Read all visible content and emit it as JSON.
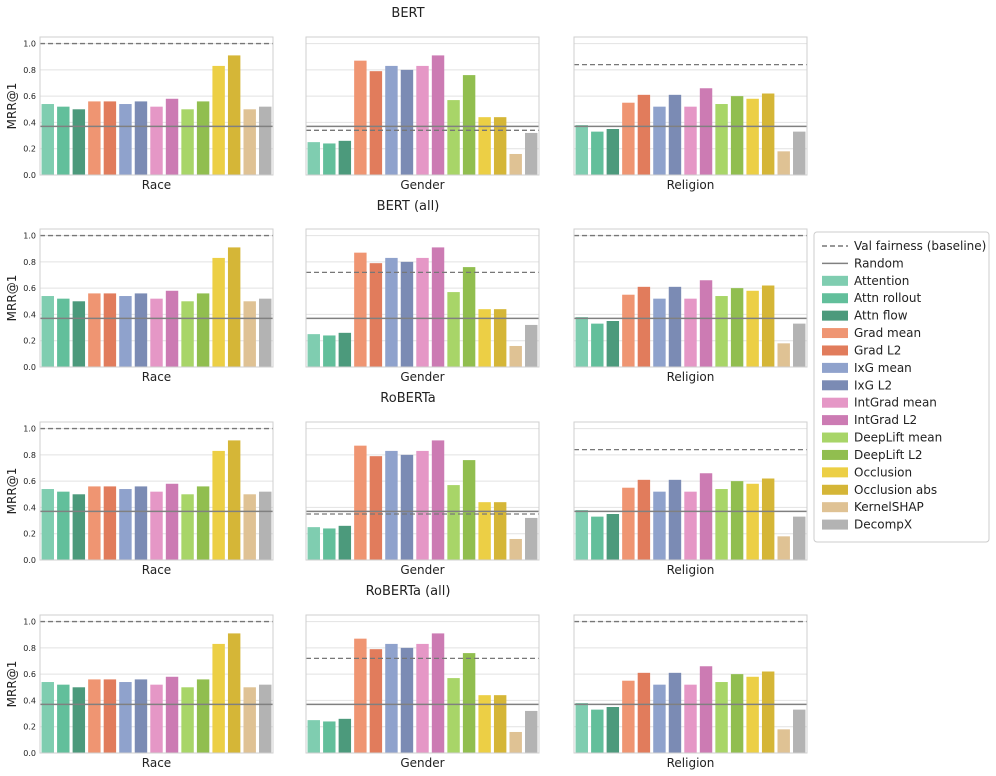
{
  "chart_data": {
    "type": "bar",
    "ylabel": "MRR@1",
    "ylim": [
      0,
      1.05
    ],
    "yticks": [
      0.0,
      0.2,
      0.4,
      0.6,
      0.8,
      1.0
    ],
    "ytick_labels": [
      "0.0",
      "0.2",
      "0.4",
      "0.6",
      "0.8",
      "1.0"
    ],
    "grid": true,
    "legend_position": "right",
    "methods": [
      "Attention",
      "Attn rollout",
      "Attn flow",
      "Grad mean",
      "Grad L2",
      "IxG mean",
      "IxG L2",
      "IntGrad mean",
      "IntGrad L2",
      "DeepLift mean",
      "DeepLift L2",
      "Occlusion",
      "Occlusion abs",
      "KernelSHAP",
      "DecompX"
    ],
    "method_colors": [
      "#7fcdb0",
      "#62bf9b",
      "#4c9a7c",
      "#ef9572",
      "#e17c5c",
      "#8fa2cc",
      "#7b8bb4",
      "#e597c6",
      "#cc7bb3",
      "#a8d568",
      "#91be4f",
      "#eccf45",
      "#d5b637",
      "#dfc294",
      "#b3b3b3"
    ],
    "legend": [
      {
        "label": "Val fairness (baseline)",
        "style": "dashed",
        "color": "#777777"
      },
      {
        "label": "Random",
        "style": "solid",
        "color": "#808080"
      },
      {
        "label": "Attention",
        "color": "#7fcdb0"
      },
      {
        "label": "Attn rollout",
        "color": "#62bf9b"
      },
      {
        "label": "Attn flow",
        "color": "#4c9a7c"
      },
      {
        "label": "Grad mean",
        "color": "#ef9572"
      },
      {
        "label": "Grad L2",
        "color": "#e17c5c"
      },
      {
        "label": "IxG mean",
        "color": "#8fa2cc"
      },
      {
        "label": "IxG L2",
        "color": "#7b8bb4"
      },
      {
        "label": "IntGrad mean",
        "color": "#e597c6"
      },
      {
        "label": "IntGrad L2",
        "color": "#cc7bb3"
      },
      {
        "label": "DeepLift mean",
        "color": "#a8d568"
      },
      {
        "label": "DeepLift L2",
        "color": "#91be4f"
      },
      {
        "label": "Occlusion",
        "color": "#eccf45"
      },
      {
        "label": "Occlusion abs",
        "color": "#d5b637"
      },
      {
        "label": "KernelSHAP",
        "color": "#dfc294"
      },
      {
        "label": "DecompX",
        "color": "#b3b3b3"
      }
    ],
    "rows": [
      {
        "title": "BERT",
        "panels": [
          {
            "xlabel": "Race",
            "values": [
              0.54,
              0.52,
              0.5,
              0.56,
              0.56,
              0.54,
              0.56,
              0.52,
              0.58,
              0.5,
              0.56,
              0.83,
              0.91,
              0.5,
              0.52
            ],
            "baseline": 1.0,
            "random": 0.37
          },
          {
            "xlabel": "Gender",
            "values": [
              0.25,
              0.24,
              0.26,
              0.87,
              0.79,
              0.83,
              0.8,
              0.83,
              0.91,
              0.57,
              0.76,
              0.44,
              0.44,
              0.16,
              0.32
            ],
            "baseline": 0.34,
            "random": 0.37
          },
          {
            "xlabel": "Religion",
            "values": [
              0.38,
              0.33,
              0.35,
              0.55,
              0.61,
              0.52,
              0.61,
              0.52,
              0.66,
              0.54,
              0.6,
              0.58,
              0.62,
              0.18,
              0.33
            ],
            "baseline": 0.84,
            "random": 0.37
          }
        ]
      },
      {
        "title": "BERT (all)",
        "panels": [
          {
            "xlabel": "Race",
            "values": [
              0.54,
              0.52,
              0.5,
              0.56,
              0.56,
              0.54,
              0.56,
              0.52,
              0.58,
              0.5,
              0.56,
              0.83,
              0.91,
              0.5,
              0.52
            ],
            "baseline": 1.0,
            "random": 0.37
          },
          {
            "xlabel": "Gender",
            "values": [
              0.25,
              0.24,
              0.26,
              0.87,
              0.79,
              0.83,
              0.8,
              0.83,
              0.91,
              0.57,
              0.76,
              0.44,
              0.44,
              0.16,
              0.32
            ],
            "baseline": 0.72,
            "random": 0.37
          },
          {
            "xlabel": "Religion",
            "values": [
              0.38,
              0.33,
              0.35,
              0.55,
              0.61,
              0.52,
              0.61,
              0.52,
              0.66,
              0.54,
              0.6,
              0.58,
              0.62,
              0.18,
              0.33
            ],
            "baseline": 1.0,
            "random": 0.37
          }
        ]
      },
      {
        "title": "RoBERTa",
        "panels": [
          {
            "xlabel": "Race",
            "values": [
              0.54,
              0.52,
              0.5,
              0.56,
              0.56,
              0.54,
              0.56,
              0.52,
              0.58,
              0.5,
              0.56,
              0.83,
              0.91,
              0.5,
              0.52
            ],
            "baseline": 1.0,
            "random": 0.37
          },
          {
            "xlabel": "Gender",
            "values": [
              0.25,
              0.24,
              0.26,
              0.87,
              0.79,
              0.83,
              0.8,
              0.83,
              0.91,
              0.57,
              0.76,
              0.44,
              0.44,
              0.16,
              0.32
            ],
            "baseline": 0.35,
            "random": 0.37
          },
          {
            "xlabel": "Religion",
            "values": [
              0.38,
              0.33,
              0.35,
              0.55,
              0.61,
              0.52,
              0.61,
              0.52,
              0.66,
              0.54,
              0.6,
              0.58,
              0.62,
              0.18,
              0.33
            ],
            "baseline": 0.84,
            "random": 0.37
          }
        ]
      },
      {
        "title": "RoBERTa (all)",
        "panels": [
          {
            "xlabel": "Race",
            "values": [
              0.54,
              0.52,
              0.5,
              0.56,
              0.56,
              0.54,
              0.56,
              0.52,
              0.58,
              0.5,
              0.56,
              0.83,
              0.91,
              0.5,
              0.52
            ],
            "baseline": 1.0,
            "random": 0.37
          },
          {
            "xlabel": "Gender",
            "values": [
              0.25,
              0.24,
              0.26,
              0.87,
              0.79,
              0.83,
              0.8,
              0.83,
              0.91,
              0.57,
              0.76,
              0.44,
              0.44,
              0.16,
              0.32
            ],
            "baseline": 0.72,
            "random": 0.37
          },
          {
            "xlabel": "Religion",
            "values": [
              0.38,
              0.33,
              0.35,
              0.55,
              0.61,
              0.52,
              0.61,
              0.52,
              0.66,
              0.54,
              0.6,
              0.58,
              0.62,
              0.18,
              0.33
            ],
            "baseline": 1.0,
            "random": 0.37
          }
        ]
      }
    ]
  }
}
